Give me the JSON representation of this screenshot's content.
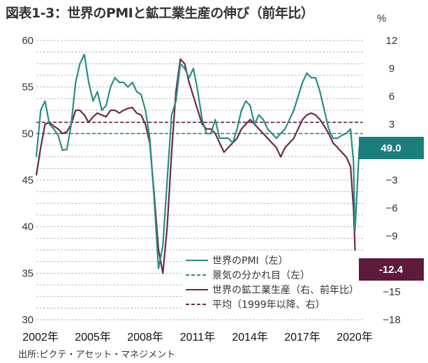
{
  "title": "図表1-3：世界のPMIと鉱工業生産の伸び（前年比）",
  "source": "出所:ピクテ・アセット・マネジメント",
  "colors": {
    "pmi": "#2a8c86",
    "production": "#6b2a47",
    "callout_pmi": "#1c7e7a",
    "callout_prod": "#5e1a3b",
    "grid": "#bdbdbd"
  },
  "chart_data": {
    "type": "line",
    "title": "図表1-3：世界のPMIと鉱工業生産の伸び（前年比）",
    "left_axis": {
      "ticks": [
        60,
        55,
        50,
        45,
        40,
        35,
        30
      ],
      "range": [
        30,
        60
      ]
    },
    "right_axis": {
      "unit": "%",
      "ticks": [
        12,
        9,
        6,
        3,
        0,
        -3,
        -6,
        -9,
        -12,
        -15,
        -18
      ],
      "tick_labels": [
        "12",
        "9",
        "6",
        "3",
        "",
        "−3",
        "−6",
        "−9",
        "",
        "−15",
        "−18"
      ],
      "range": [
        -18,
        12
      ]
    },
    "x_axis": {
      "ticks": [
        "2002年",
        "2005年",
        "2008年",
        "2011年",
        "2014年",
        "2017年",
        "2020年"
      ],
      "tick_values": [
        2002,
        2005,
        2008,
        2011,
        2014,
        2017,
        2020
      ],
      "range": [
        2002,
        2020.8
      ]
    },
    "grid": true,
    "legend_position": "bottom-right",
    "legend": [
      {
        "label": "世界のPMI（左）",
        "style": "solid",
        "color": "#2a8c86"
      },
      {
        "label": "景気の分かれ目（左）",
        "style": "dashed",
        "color": "#2a8c86"
      },
      {
        "label": "世界の鉱工業生産（右、前年比）",
        "style": "solid",
        "color": "#6b2a47"
      },
      {
        "label": "平均（1999年以降、右）",
        "style": "dashed",
        "color": "#6b2a47"
      }
    ],
    "callouts": [
      {
        "label": "49.0",
        "series": "世界のPMI（左）"
      },
      {
        "label": "-12.4",
        "series": "世界の鉱工業生産（右、前年比）"
      }
    ],
    "series": [
      {
        "name": "世界のPMI（左）",
        "axis": "left",
        "x": [
          2002.0,
          2002.25,
          2002.5,
          2002.75,
          2003.0,
          2003.25,
          2003.5,
          2003.75,
          2004.0,
          2004.25,
          2004.5,
          2004.75,
          2005.0,
          2005.25,
          2005.5,
          2005.75,
          2006.0,
          2006.25,
          2006.5,
          2006.75,
          2007.0,
          2007.25,
          2007.5,
          2007.75,
          2008.0,
          2008.25,
          2008.5,
          2008.75,
          2009.0,
          2009.25,
          2009.5,
          2009.75,
          2010.0,
          2010.25,
          2010.5,
          2010.75,
          2011.0,
          2011.25,
          2011.5,
          2011.75,
          2012.0,
          2012.25,
          2012.5,
          2012.75,
          2013.0,
          2013.25,
          2013.5,
          2013.75,
          2014.0,
          2014.25,
          2014.5,
          2014.75,
          2015.0,
          2015.25,
          2015.5,
          2015.75,
          2016.0,
          2016.25,
          2016.5,
          2016.75,
          2017.0,
          2017.25,
          2017.5,
          2017.75,
          2018.0,
          2018.25,
          2018.5,
          2018.75,
          2019.0,
          2019.25,
          2019.5,
          2019.75,
          2020.0,
          2020.17,
          2020.25,
          2020.33,
          2020.5,
          2020.7
        ],
        "values": [
          47.5,
          52.5,
          53.5,
          51.0,
          50.5,
          49.8,
          48.2,
          48.3,
          51.0,
          55.5,
          57.5,
          58.5,
          55.5,
          53.5,
          54.5,
          52.5,
          53.0,
          55.0,
          56.0,
          55.5,
          55.5,
          55.0,
          55.5,
          54.5,
          54.2,
          52.5,
          49.5,
          43.0,
          35.5,
          38.0,
          45.0,
          52.0,
          53.5,
          57.5,
          57.0,
          56.0,
          57.0,
          54.5,
          51.5,
          50.0,
          50.0,
          51.5,
          49.5,
          49.5,
          49.5,
          49.0,
          50.5,
          52.5,
          53.5,
          53.0,
          51.0,
          52.0,
          51.5,
          50.5,
          50.0,
          49.5,
          50.0,
          50.5,
          51.5,
          52.5,
          54.0,
          55.5,
          56.5,
          56.0,
          56.0,
          54.5,
          52.5,
          50.5,
          49.5,
          49.5,
          49.8,
          50.0,
          50.5,
          47.0,
          39.5,
          42.0,
          48.5,
          49.0
        ]
      },
      {
        "name": "景気の分かれ目（左）",
        "axis": "left",
        "x": [
          2002.0,
          2020.7
        ],
        "values": [
          50,
          50
        ]
      },
      {
        "name": "世界の鉱工業生産（右、前年比）",
        "axis": "right",
        "x": [
          2002.0,
          2002.25,
          2002.5,
          2002.75,
          2003.0,
          2003.25,
          2003.5,
          2003.75,
          2004.0,
          2004.25,
          2004.5,
          2004.75,
          2005.0,
          2005.25,
          2005.5,
          2005.75,
          2006.0,
          2006.25,
          2006.5,
          2006.75,
          2007.0,
          2007.25,
          2007.5,
          2007.75,
          2008.0,
          2008.25,
          2008.5,
          2008.75,
          2009.0,
          2009.25,
          2009.5,
          2009.75,
          2010.0,
          2010.25,
          2010.5,
          2010.75,
          2011.0,
          2011.25,
          2011.5,
          2011.75,
          2012.0,
          2012.25,
          2012.5,
          2012.75,
          2013.0,
          2013.25,
          2013.5,
          2013.75,
          2014.0,
          2014.25,
          2014.5,
          2014.75,
          2015.0,
          2015.25,
          2015.5,
          2015.75,
          2016.0,
          2016.25,
          2016.5,
          2016.75,
          2017.0,
          2017.25,
          2017.5,
          2017.75,
          2018.0,
          2018.25,
          2018.5,
          2018.75,
          2019.0,
          2019.25,
          2019.5,
          2019.75,
          2020.0,
          2020.17,
          2020.25,
          2020.33,
          2020.5,
          2020.7
        ],
        "values": [
          -2.5,
          0.5,
          3.0,
          3.2,
          2.8,
          2.5,
          2.0,
          2.2,
          3.0,
          4.5,
          4.5,
          4.0,
          3.2,
          3.8,
          4.2,
          4.0,
          3.8,
          4.5,
          4.5,
          4.2,
          4.5,
          4.7,
          4.8,
          4.2,
          4.0,
          3.0,
          1.0,
          -4.5,
          -10.5,
          -13.0,
          -8.0,
          0.0,
          6.5,
          10.0,
          9.5,
          7.5,
          6.0,
          4.5,
          3.0,
          2.5,
          2.5,
          2.0,
          1.0,
          0.0,
          0.5,
          1.0,
          1.5,
          2.5,
          3.0,
          3.5,
          3.0,
          2.5,
          2.0,
          1.5,
          1.0,
          0.5,
          -0.5,
          0.5,
          1.0,
          1.5,
          2.5,
          3.5,
          4.0,
          4.2,
          4.0,
          3.5,
          2.8,
          2.0,
          1.0,
          0.5,
          0.0,
          -0.5,
          -1.5,
          -6.0,
          -10.0,
          -13.5,
          -12.4,
          -12.4
        ]
      },
      {
        "name": "平均（1999年以降、右）",
        "axis": "right",
        "x": [
          2002.0,
          2020.7
        ],
        "values": [
          3.2,
          3.2
        ]
      }
    ]
  }
}
